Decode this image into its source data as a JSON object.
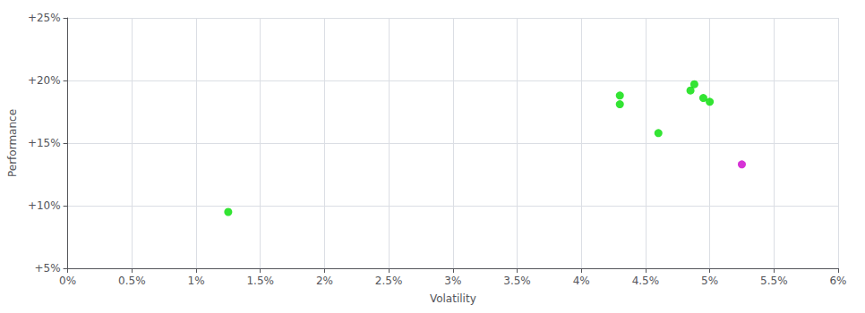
{
  "chart_data": {
    "type": "scatter",
    "xlabel": "Volatility",
    "ylabel": "Performance",
    "series": [
      {
        "color": "#00dd00",
        "x": [
          0.0125,
          0.043,
          0.043,
          0.046,
          0.0485,
          0.0488,
          0.0495,
          0.05
        ],
        "values": [
          0.095,
          0.188,
          0.181,
          0.158,
          0.192,
          0.197,
          0.186,
          0.183
        ]
      },
      {
        "color": "#cc00cc",
        "x": [
          0.0525
        ],
        "values": [
          0.133
        ]
      }
    ],
    "xlim": [
      0.0,
      0.06
    ],
    "ylim": [
      0.05,
      0.25
    ],
    "xticks": [
      {
        "value": 0.0,
        "label": "0%"
      },
      {
        "value": 0.005,
        "label": "0.5%"
      },
      {
        "value": 0.01,
        "label": "1%"
      },
      {
        "value": 0.015,
        "label": "1.5%"
      },
      {
        "value": 0.02,
        "label": "2%"
      },
      {
        "value": 0.025,
        "label": "2.5%"
      },
      {
        "value": 0.03,
        "label": "3%"
      },
      {
        "value": 0.035,
        "label": "3.5%"
      },
      {
        "value": 0.04,
        "label": "4%"
      },
      {
        "value": 0.045,
        "label": "4.5%"
      },
      {
        "value": 0.05,
        "label": "5%"
      },
      {
        "value": 0.055,
        "label": "5.5%"
      },
      {
        "value": 0.06,
        "label": "6%"
      }
    ],
    "yticks": [
      {
        "value": 0.05,
        "label": "+5%"
      },
      {
        "value": 0.1,
        "label": "+10%"
      },
      {
        "value": 0.15,
        "label": "+15%"
      },
      {
        "value": 0.2,
        "label": "+20%"
      },
      {
        "value": 0.25,
        "label": "+25%"
      }
    ],
    "grid": true
  }
}
